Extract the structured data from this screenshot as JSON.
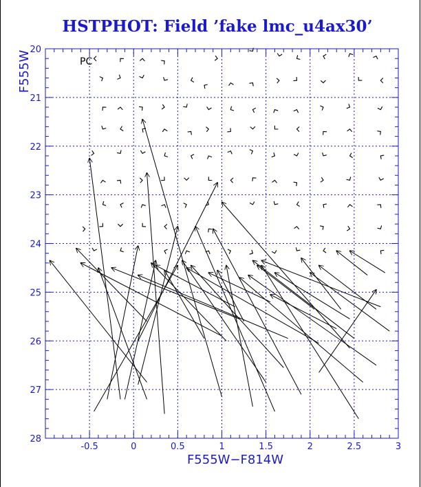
{
  "chart_data": {
    "type": "scatter",
    "title": "HSTPHOT: Field ’fake lmc_u4ax30’",
    "panel_label": "PC",
    "xlabel": "F555W−F814W",
    "ylabel": "F555W",
    "xlim": [
      -1.0,
      3.0
    ],
    "ylim": [
      20,
      28
    ],
    "y_inverted": true,
    "grid": true,
    "grid_style": "dotted",
    "x_ticks": [
      -0.5,
      0,
      0.5,
      1,
      1.5,
      2,
      2.5,
      3
    ],
    "x_tick_labels": [
      "-0.5",
      "0",
      "0.5",
      "1",
      "1.5",
      "2",
      "2.5",
      "3"
    ],
    "y_ticks": [
      20,
      21,
      22,
      23,
      24,
      25,
      26,
      27,
      28
    ],
    "y_tick_labels": [
      "20",
      "21",
      "22",
      "23",
      "24",
      "25",
      "26",
      "27",
      "28"
    ],
    "colors": {
      "title": "#1a1acc",
      "axes": "#1a1acc",
      "grid": "#1a1acc",
      "marks": "#000000"
    },
    "series": [
      {
        "mark": "short-arrow",
        "points": [
          {
            "x": -0.45,
            "y": 20.2
          },
          {
            "x": -0.15,
            "y": 20.2
          },
          {
            "x": 0.1,
            "y": 20.2
          },
          {
            "x": 0.35,
            "y": 20.25
          },
          {
            "x": 0.95,
            "y": 20.2
          },
          {
            "x": 1.35,
            "y": 20.05
          },
          {
            "x": 1.65,
            "y": 20.15
          },
          {
            "x": 1.85,
            "y": 20.2
          },
          {
            "x": 2.15,
            "y": 20.15
          },
          {
            "x": 2.45,
            "y": 20.1
          },
          {
            "x": 2.75,
            "y": 20.15
          },
          {
            "x": -0.35,
            "y": 20.6
          },
          {
            "x": -0.15,
            "y": 20.6
          },
          {
            "x": 0.1,
            "y": 20.6
          },
          {
            "x": 0.35,
            "y": 20.65
          },
          {
            "x": 0.65,
            "y": 20.65
          },
          {
            "x": 0.8,
            "y": 20.75
          },
          {
            "x": 1.1,
            "y": 20.7
          },
          {
            "x": 1.35,
            "y": 20.7
          },
          {
            "x": 1.65,
            "y": 20.65
          },
          {
            "x": 1.85,
            "y": 20.65
          },
          {
            "x": 2.15,
            "y": 20.7
          },
          {
            "x": 2.55,
            "y": 20.65
          },
          {
            "x": 2.8,
            "y": 20.65
          },
          {
            "x": -0.35,
            "y": 21.2
          },
          {
            "x": -0.15,
            "y": 21.2
          },
          {
            "x": 0.1,
            "y": 21.2
          },
          {
            "x": 0.35,
            "y": 21.2
          },
          {
            "x": 0.6,
            "y": 21.2
          },
          {
            "x": 0.85,
            "y": 21.25
          },
          {
            "x": 1.1,
            "y": 21.25
          },
          {
            "x": 1.35,
            "y": 21.25
          },
          {
            "x": 1.6,
            "y": 21.25
          },
          {
            "x": 1.85,
            "y": 21.25
          },
          {
            "x": 2.15,
            "y": 21.2
          },
          {
            "x": 2.45,
            "y": 21.2
          },
          {
            "x": 2.8,
            "y": 21.25
          },
          {
            "x": -0.35,
            "y": 21.65
          },
          {
            "x": -0.15,
            "y": 21.65
          },
          {
            "x": 0.1,
            "y": 21.65
          },
          {
            "x": 0.35,
            "y": 21.65
          },
          {
            "x": 0.65,
            "y": 21.7
          },
          {
            "x": 0.85,
            "y": 21.65
          },
          {
            "x": 1.1,
            "y": 21.7
          },
          {
            "x": 1.35,
            "y": 21.65
          },
          {
            "x": 1.6,
            "y": 21.65
          },
          {
            "x": 1.85,
            "y": 21.65
          },
          {
            "x": 2.15,
            "y": 21.7
          },
          {
            "x": 2.45,
            "y": 21.65
          },
          {
            "x": 2.8,
            "y": 21.7
          },
          {
            "x": -0.45,
            "y": 22.15
          },
          {
            "x": -0.15,
            "y": 22.15
          },
          {
            "x": 0.1,
            "y": 22.15
          },
          {
            "x": 0.35,
            "y": 22.2
          },
          {
            "x": 0.65,
            "y": 22.2
          },
          {
            "x": 0.85,
            "y": 22.2
          },
          {
            "x": 1.1,
            "y": 22.1
          },
          {
            "x": 1.35,
            "y": 22.1
          },
          {
            "x": 1.6,
            "y": 22.2
          },
          {
            "x": 1.85,
            "y": 22.2
          },
          {
            "x": 2.15,
            "y": 22.2
          },
          {
            "x": 2.45,
            "y": 22.2
          },
          {
            "x": 2.8,
            "y": 22.2
          },
          {
            "x": -0.35,
            "y": 22.7
          },
          {
            "x": -0.15,
            "y": 22.7
          },
          {
            "x": 0.1,
            "y": 22.7
          },
          {
            "x": 0.35,
            "y": 22.7
          },
          {
            "x": 0.6,
            "y": 22.7
          },
          {
            "x": 0.85,
            "y": 22.7
          },
          {
            "x": 1.1,
            "y": 22.7
          },
          {
            "x": 1.35,
            "y": 22.65
          },
          {
            "x": 1.6,
            "y": 22.7
          },
          {
            "x": 1.85,
            "y": 22.75
          },
          {
            "x": 2.15,
            "y": 22.7
          },
          {
            "x": 2.45,
            "y": 22.7
          },
          {
            "x": 2.8,
            "y": 22.7
          },
          {
            "x": -0.35,
            "y": 23.2
          },
          {
            "x": -0.15,
            "y": 23.2
          },
          {
            "x": 0.1,
            "y": 23.2
          },
          {
            "x": 0.35,
            "y": 23.2
          },
          {
            "x": 0.6,
            "y": 23.2
          },
          {
            "x": 0.85,
            "y": 23.2
          },
          {
            "x": 1.35,
            "y": 23.2
          },
          {
            "x": 1.6,
            "y": 23.2
          },
          {
            "x": 1.85,
            "y": 23.2
          },
          {
            "x": 2.15,
            "y": 23.2
          },
          {
            "x": 2.45,
            "y": 23.2
          },
          {
            "x": 2.8,
            "y": 23.2
          },
          {
            "x": -0.55,
            "y": 23.7
          },
          {
            "x": -0.35,
            "y": 23.65
          },
          {
            "x": -0.15,
            "y": 23.65
          },
          {
            "x": 0.1,
            "y": 23.65
          },
          {
            "x": 0.35,
            "y": 23.65
          },
          {
            "x": 0.85,
            "y": 23.7
          },
          {
            "x": 1.85,
            "y": 23.65
          },
          {
            "x": 2.15,
            "y": 23.65
          },
          {
            "x": 2.45,
            "y": 23.7
          },
          {
            "x": 2.8,
            "y": 23.7
          },
          {
            "x": -0.45,
            "y": 24.15
          },
          {
            "x": -0.15,
            "y": 24.15
          },
          {
            "x": 0.35,
            "y": 24.15
          },
          {
            "x": 0.6,
            "y": 24.15
          },
          {
            "x": 0.85,
            "y": 24.15
          },
          {
            "x": 1.1,
            "y": 24.15
          },
          {
            "x": 1.35,
            "y": 24.2
          },
          {
            "x": 1.6,
            "y": 24.2
          },
          {
            "x": 1.85,
            "y": 24.15
          },
          {
            "x": 2.15,
            "y": 24.15
          },
          {
            "x": 2.8,
            "y": 24.15
          }
        ]
      },
      {
        "mark": "long-arrow",
        "vectors": [
          {
            "x0": -0.15,
            "y0": 27.2,
            "x1": -0.5,
            "y1": 22.25
          },
          {
            "x0": 0.15,
            "y0": 27.2,
            "x1": -0.4,
            "y1": 24.5
          },
          {
            "x0": -0.3,
            "y0": 27.2,
            "x1": 0.05,
            "y1": 24.05
          },
          {
            "x0": 0.35,
            "y0": 27.5,
            "x1": 0.15,
            "y1": 22.55
          },
          {
            "x0": 1.0,
            "y0": 27.15,
            "x1": 0.1,
            "y1": 21.45
          },
          {
            "x0": -0.1,
            "y0": 27.2,
            "x1": 0.25,
            "y1": 24.35
          },
          {
            "x0": -0.45,
            "y0": 27.45,
            "x1": 0.5,
            "y1": 24.45
          },
          {
            "x0": 0.05,
            "y0": 26.9,
            "x1": 0.5,
            "y1": 23.65
          },
          {
            "x0": 0.05,
            "y0": 26.0,
            "x1": 0.95,
            "y1": 22.75
          },
          {
            "x0": 0.15,
            "y0": 26.85,
            "x1": -0.95,
            "y1": 24.35
          },
          {
            "x0": 0.15,
            "y0": 25.6,
            "x1": -0.65,
            "y1": 24.1
          },
          {
            "x0": 1.0,
            "y0": 25.9,
            "x1": -0.6,
            "y1": 24.4
          },
          {
            "x0": 1.35,
            "y0": 27.35,
            "x1": 1.05,
            "y1": 24.45
          },
          {
            "x0": 1.6,
            "y0": 27.45,
            "x1": 0.7,
            "y1": 23.65
          },
          {
            "x0": 1.9,
            "y0": 27.1,
            "x1": 0.9,
            "y1": 23.7
          },
          {
            "x0": 1.5,
            "y0": 26.85,
            "x1": 0.55,
            "y1": 24.35
          },
          {
            "x0": 1.7,
            "y0": 26.55,
            "x1": 0.65,
            "y1": 24.45
          },
          {
            "x0": 2.1,
            "y0": 26.05,
            "x1": 0.6,
            "y1": 24.5
          },
          {
            "x0": 1.75,
            "y0": 25.95,
            "x1": 0.05,
            "y1": 24.65
          },
          {
            "x0": 0.8,
            "y0": 25.95,
            "x1": 0.35,
            "y1": 24.55
          },
          {
            "x0": 2.55,
            "y0": 27.6,
            "x1": 1.45,
            "y1": 24.45
          },
          {
            "x0": 2.6,
            "y0": 26.85,
            "x1": 1.2,
            "y1": 24.7
          },
          {
            "x0": 2.75,
            "y0": 26.5,
            "x1": 1.3,
            "y1": 24.65
          },
          {
            "x0": 2.45,
            "y0": 26.15,
            "x1": 1.0,
            "y1": 23.15
          },
          {
            "x0": 2.3,
            "y0": 25.75,
            "x1": 1.55,
            "y1": 25.05
          },
          {
            "x0": 2.5,
            "y0": 25.95,
            "x1": 1.35,
            "y1": 24.35
          },
          {
            "x0": 2.8,
            "y0": 25.3,
            "x1": 1.45,
            "y1": 24.35
          },
          {
            "x0": 2.45,
            "y0": 25.55,
            "x1": 1.6,
            "y1": 24.6
          },
          {
            "x0": 2.9,
            "y0": 25.8,
            "x1": 2.0,
            "y1": 24.6
          },
          {
            "x0": 2.75,
            "y0": 25.35,
            "x1": 2.1,
            "y1": 24.45
          },
          {
            "x0": 2.35,
            "y0": 25.35,
            "x1": 1.9,
            "y1": 24.3
          },
          {
            "x0": 2.65,
            "y0": 24.65,
            "x1": 2.3,
            "y1": 24.15
          },
          {
            "x0": 2.85,
            "y0": 24.6,
            "x1": 2.45,
            "y1": 24.15
          },
          {
            "x0": 2.1,
            "y0": 26.65,
            "x1": 2.75,
            "y1": 24.95
          },
          {
            "x0": 2.05,
            "y0": 25.35,
            "x1": 1.4,
            "y1": 24.45
          },
          {
            "x0": 1.2,
            "y0": 25.55,
            "x1": -0.25,
            "y1": 24.5
          },
          {
            "x0": 1.05,
            "y0": 26.0,
            "x1": 0.2,
            "y1": 24.4
          },
          {
            "x0": 1.15,
            "y0": 25.3,
            "x1": 0.25,
            "y1": 24.45
          },
          {
            "x0": 1.55,
            "y0": 25.2,
            "x1": 0.85,
            "y1": 24.6
          },
          {
            "x0": 1.25,
            "y0": 25.6,
            "x1": 0.95,
            "y1": 24.55
          }
        ]
      }
    ]
  }
}
